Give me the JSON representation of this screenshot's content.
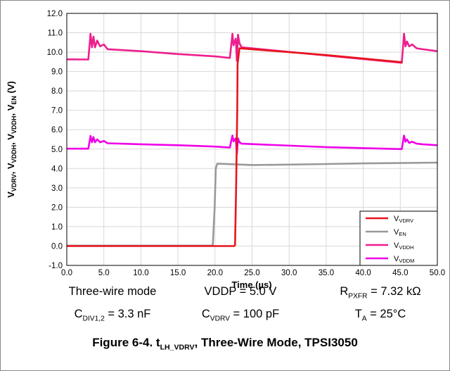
{
  "chart_data": {
    "type": "line",
    "xlabel": "Time (µs)",
    "ylabel_parts": [
      {
        "base": "V",
        "sub": "VDRV"
      },
      {
        "base": ", V",
        "sub": "VDDH"
      },
      {
        "base": ", V",
        "sub": "VDDH"
      },
      {
        "base": ", V",
        "sub": "EN"
      },
      {
        "base": " (V)",
        "sub": ""
      }
    ],
    "xlim": [
      0,
      50
    ],
    "ylim": [
      -1,
      12
    ],
    "x_ticks": [
      "0.0",
      "5.0",
      "10.0",
      "15.0",
      "20.0",
      "25.0",
      "30.0",
      "35.0",
      "40.0",
      "45.0",
      "50.0"
    ],
    "y_ticks": [
      "-1.0",
      "0.0",
      "1.0",
      "2.0",
      "3.0",
      "4.0",
      "5.0",
      "6.0",
      "7.0",
      "8.0",
      "9.0",
      "10.0",
      "11.0",
      "12.0"
    ],
    "grid": true,
    "legend_position": "bottom-right",
    "series": [
      {
        "name": "VDRV",
        "name_base": "V",
        "name_sub": "VDRV",
        "color": "#e8141c",
        "x": [
          0,
          22.6,
          22.7,
          22.85,
          23.0,
          23.05,
          23.3,
          35,
          45.3
        ],
        "y": [
          0.0,
          0.0,
          0.05,
          3.0,
          7.0,
          9.4,
          10.2,
          9.85,
          9.48
        ]
      },
      {
        "name": "EN",
        "name_base": "V",
        "name_sub": "EN",
        "color": "#999999",
        "x": [
          0,
          19.7,
          19.95,
          20.1,
          20.3,
          25,
          30,
          35,
          40,
          45,
          50
        ],
        "y": [
          0.02,
          0.02,
          2.0,
          4.0,
          4.25,
          4.18,
          4.2,
          4.23,
          4.26,
          4.28,
          4.3
        ]
      },
      {
        "name": "VDDH",
        "name_base": "V",
        "name_sub": "VDDH",
        "color": "#ee1e8e",
        "x": [
          0,
          2.9,
          3.1,
          3.2,
          3.4,
          3.6,
          3.8,
          4.1,
          4.5,
          5.0,
          5.5,
          10,
          15,
          20,
          22.0,
          22.2,
          22.35,
          22.5,
          22.8,
          22.95,
          23.1,
          23.3,
          23.6,
          35,
          45.2,
          45.4,
          45.5,
          45.7,
          45.9,
          46.2,
          46.6,
          47.2,
          48.0,
          50
        ],
        "y": [
          9.63,
          9.62,
          10.5,
          10.95,
          10.25,
          10.8,
          10.25,
          10.6,
          10.3,
          10.4,
          10.15,
          10.05,
          9.9,
          9.78,
          9.7,
          10.4,
          10.95,
          10.35,
          10.7,
          9.55,
          10.9,
          10.45,
          10.25,
          9.83,
          9.45,
          10.4,
          10.95,
          10.3,
          10.55,
          10.3,
          10.4,
          10.2,
          10.15,
          10.05
        ]
      },
      {
        "name": "VDDM",
        "name_base": "V",
        "name_sub": "VDDM",
        "color": "#f000e8",
        "x": [
          0,
          2.9,
          3.1,
          3.2,
          3.4,
          3.6,
          3.8,
          4.1,
          4.5,
          5.0,
          5.5,
          10,
          15,
          20,
          22.0,
          22.2,
          22.35,
          22.5,
          22.8,
          22.95,
          23.1,
          23.3,
          23.6,
          35,
          45.2,
          45.4,
          45.5,
          45.7,
          45.9,
          46.2,
          46.6,
          47.2,
          48.0,
          50
        ],
        "y": [
          5.02,
          5.02,
          5.45,
          5.68,
          5.35,
          5.62,
          5.35,
          5.5,
          5.35,
          5.42,
          5.3,
          5.25,
          5.2,
          5.13,
          5.08,
          5.45,
          5.7,
          5.4,
          5.55,
          4.75,
          5.55,
          5.35,
          5.28,
          5.1,
          5.0,
          5.45,
          5.7,
          5.38,
          5.5,
          5.32,
          5.38,
          5.28,
          5.25,
          5.2
        ]
      }
    ]
  },
  "conditions": {
    "row1": {
      "mode": "Three-wire mode",
      "vddp": "VDDP = 5.0 V",
      "rpxfr_base": "R",
      "rpxfr_sub": "PXFR",
      "rpxfr_val": " = 7.32 kΩ"
    },
    "row2": {
      "cdiv_base": "C",
      "cdiv_sub": "DIV1,2",
      "cdiv_val": " = 3.3 nF",
      "cvdrv_base": "C",
      "cvdrv_sub": "VDRV",
      "cvdrv_val": " = 100 pF",
      "ta_base": "T",
      "ta_sub": "A",
      "ta_val": " = 25°C"
    }
  },
  "caption": {
    "prefix": "Figure 6-4. t",
    "sub": "LH_VDRV",
    "suffix": ", Three-Wire Mode, TPSI3050"
  }
}
